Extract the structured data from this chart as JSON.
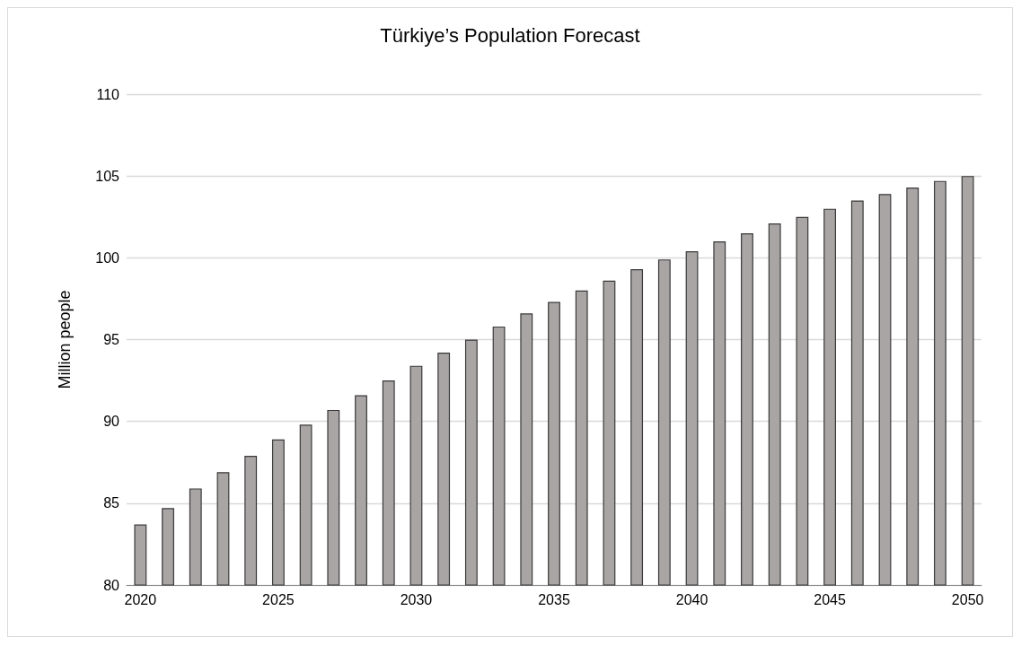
{
  "chart_data": {
    "type": "bar",
    "title": "Türkiye’s Population Forecast",
    "ylabel": "Million people",
    "categories": [
      "2020",
      null,
      null,
      null,
      null,
      "2025",
      null,
      null,
      null,
      null,
      "2030",
      null,
      null,
      null,
      null,
      "2035",
      null,
      null,
      null,
      null,
      "2040",
      null,
      null,
      null,
      null,
      "2045",
      null,
      null,
      null,
      null,
      "2050"
    ],
    "values": [
      83.7,
      84.7,
      85.9,
      86.9,
      87.9,
      88.9,
      89.8,
      90.7,
      91.6,
      92.5,
      93.4,
      94.2,
      95.0,
      95.8,
      96.6,
      97.3,
      98.0,
      98.6,
      99.3,
      99.9,
      100.4,
      101.0,
      101.5,
      102.1,
      102.5,
      103.0,
      103.5,
      103.9,
      104.3,
      104.7,
      105.0
    ],
    "color": "#a9a5a5",
    "ylim": [
      80,
      110
    ],
    "yticks": [
      80,
      85,
      90,
      95,
      100,
      105,
      110
    ],
    "grid": "y"
  }
}
